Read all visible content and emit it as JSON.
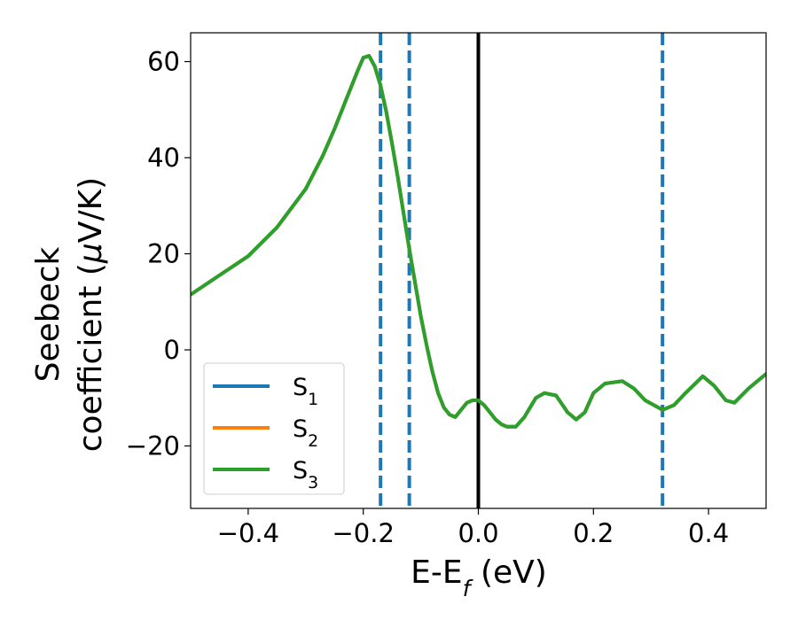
{
  "chart_data": {
    "type": "line",
    "xlabel": "E-E_f (eV)",
    "ylabel_line1": "Seebeck",
    "ylabel_line2": "coefficient  (μV/K)",
    "xlim": [
      -0.5,
      0.5
    ],
    "ylim": [
      -33,
      66
    ],
    "xticks": [
      -0.4,
      -0.2,
      0.0,
      0.2,
      0.4
    ],
    "xtick_labels": [
      "−0.4",
      "−0.2",
      "0.0",
      "0.2",
      "0.4"
    ],
    "yticks": [
      -20,
      0,
      20,
      40,
      60
    ],
    "ytick_labels": [
      "−20",
      "0",
      "20",
      "40",
      "60"
    ],
    "legend_position": "lower-left",
    "grid": false,
    "fermi_line": {
      "x": 0.0,
      "color": "#000000"
    },
    "vlines": [
      {
        "x": -0.17,
        "color": "#1f77b4",
        "style": "dashed"
      },
      {
        "x": -0.12,
        "color": "#1f77b4",
        "style": "dashed"
      },
      {
        "x": 0.32,
        "color": "#1f77b4",
        "style": "dashed"
      }
    ],
    "series": [
      {
        "name": "S_1",
        "color": "#1f77b4",
        "x": [
          -0.5,
          -0.45,
          -0.4,
          -0.35,
          -0.3,
          -0.27,
          -0.25,
          -0.23,
          -0.21,
          -0.2,
          -0.19,
          -0.18,
          -0.17,
          -0.16,
          -0.15,
          -0.14,
          -0.13,
          -0.12,
          -0.11,
          -0.1,
          -0.09,
          -0.08,
          -0.07,
          -0.06,
          -0.05,
          -0.04,
          -0.03,
          -0.02,
          -0.01,
          0.0,
          0.01,
          0.02,
          0.03,
          0.04,
          0.05,
          0.065,
          0.08,
          0.1,
          0.115,
          0.135,
          0.155,
          0.17,
          0.185,
          0.2,
          0.22,
          0.25,
          0.27,
          0.29,
          0.32,
          0.34,
          0.36,
          0.39,
          0.41,
          0.43,
          0.445,
          0.47,
          0.5
        ],
        "y": [
          11.5,
          15.5,
          19.5,
          25.5,
          33.5,
          40.5,
          46,
          52,
          58,
          60.8,
          61.2,
          59,
          55,
          49.5,
          43,
          36,
          28.5,
          21,
          14,
          7,
          1,
          -4.5,
          -9,
          -12,
          -13.5,
          -14,
          -12.5,
          -11,
          -10.5,
          -10.5,
          -11.5,
          -13,
          -14.5,
          -15.5,
          -16,
          -16,
          -14,
          -10,
          -9,
          -9.5,
          -13,
          -14.5,
          -13,
          -9,
          -7,
          -6.5,
          -8,
          -10.5,
          -12.5,
          -11.5,
          -9,
          -5.5,
          -7.5,
          -10.5,
          -11,
          -8,
          -5
        ]
      },
      {
        "name": "S_2",
        "color": "#ff7f0e",
        "x": [
          -0.5,
          -0.45,
          -0.4,
          -0.35,
          -0.3,
          -0.27,
          -0.25,
          -0.23,
          -0.21,
          -0.2,
          -0.19,
          -0.18,
          -0.17,
          -0.16,
          -0.15,
          -0.14,
          -0.13,
          -0.12,
          -0.11,
          -0.1,
          -0.09,
          -0.08,
          -0.07,
          -0.06,
          -0.05,
          -0.04,
          -0.03,
          -0.02,
          -0.01,
          0.0,
          0.01,
          0.02,
          0.03,
          0.04,
          0.05,
          0.065,
          0.08,
          0.1,
          0.115,
          0.135,
          0.155,
          0.17,
          0.185,
          0.2,
          0.22,
          0.25,
          0.27,
          0.29,
          0.32,
          0.34,
          0.36,
          0.39,
          0.41,
          0.43,
          0.445,
          0.47,
          0.5
        ],
        "y": [
          11.5,
          15.5,
          19.5,
          25.5,
          33.5,
          40.5,
          46,
          52,
          58,
          60.8,
          61.2,
          59,
          55,
          49.5,
          43,
          36,
          28.5,
          21,
          14,
          7,
          1,
          -4.5,
          -9,
          -12,
          -13.5,
          -14,
          -12.5,
          -11,
          -10.5,
          -10.5,
          -11.5,
          -13,
          -14.5,
          -15.5,
          -16,
          -16,
          -14,
          -10,
          -9,
          -9.5,
          -13,
          -14.5,
          -13,
          -9,
          -7,
          -6.5,
          -8,
          -10.5,
          -12.5,
          -11.5,
          -9,
          -5.5,
          -7.5,
          -10.5,
          -11,
          -8,
          -5
        ]
      },
      {
        "name": "S_3",
        "color": "#2ca02c",
        "x": [
          -0.5,
          -0.45,
          -0.4,
          -0.35,
          -0.3,
          -0.27,
          -0.25,
          -0.23,
          -0.21,
          -0.2,
          -0.19,
          -0.18,
          -0.17,
          -0.16,
          -0.15,
          -0.14,
          -0.13,
          -0.12,
          -0.11,
          -0.1,
          -0.09,
          -0.08,
          -0.07,
          -0.06,
          -0.05,
          -0.04,
          -0.03,
          -0.02,
          -0.01,
          0.0,
          0.01,
          0.02,
          0.03,
          0.04,
          0.05,
          0.065,
          0.08,
          0.1,
          0.115,
          0.135,
          0.155,
          0.17,
          0.185,
          0.2,
          0.22,
          0.25,
          0.27,
          0.29,
          0.32,
          0.34,
          0.36,
          0.39,
          0.41,
          0.43,
          0.445,
          0.47,
          0.5
        ],
        "y": [
          11.5,
          15.5,
          19.5,
          25.5,
          33.5,
          40.5,
          46,
          52,
          58,
          60.8,
          61.2,
          59,
          55,
          49.5,
          43,
          36,
          28.5,
          21,
          14,
          7,
          1,
          -4.5,
          -9,
          -12,
          -13.5,
          -14,
          -12.5,
          -11,
          -10.5,
          -10.5,
          -11.5,
          -13,
          -14.5,
          -15.5,
          -16,
          -16,
          -14,
          -10,
          -9,
          -9.5,
          -13,
          -14.5,
          -13,
          -9,
          -7,
          -6.5,
          -8,
          -10.5,
          -12.5,
          -11.5,
          -9,
          -5.5,
          -7.5,
          -10.5,
          -11,
          -8,
          -5
        ]
      }
    ]
  }
}
